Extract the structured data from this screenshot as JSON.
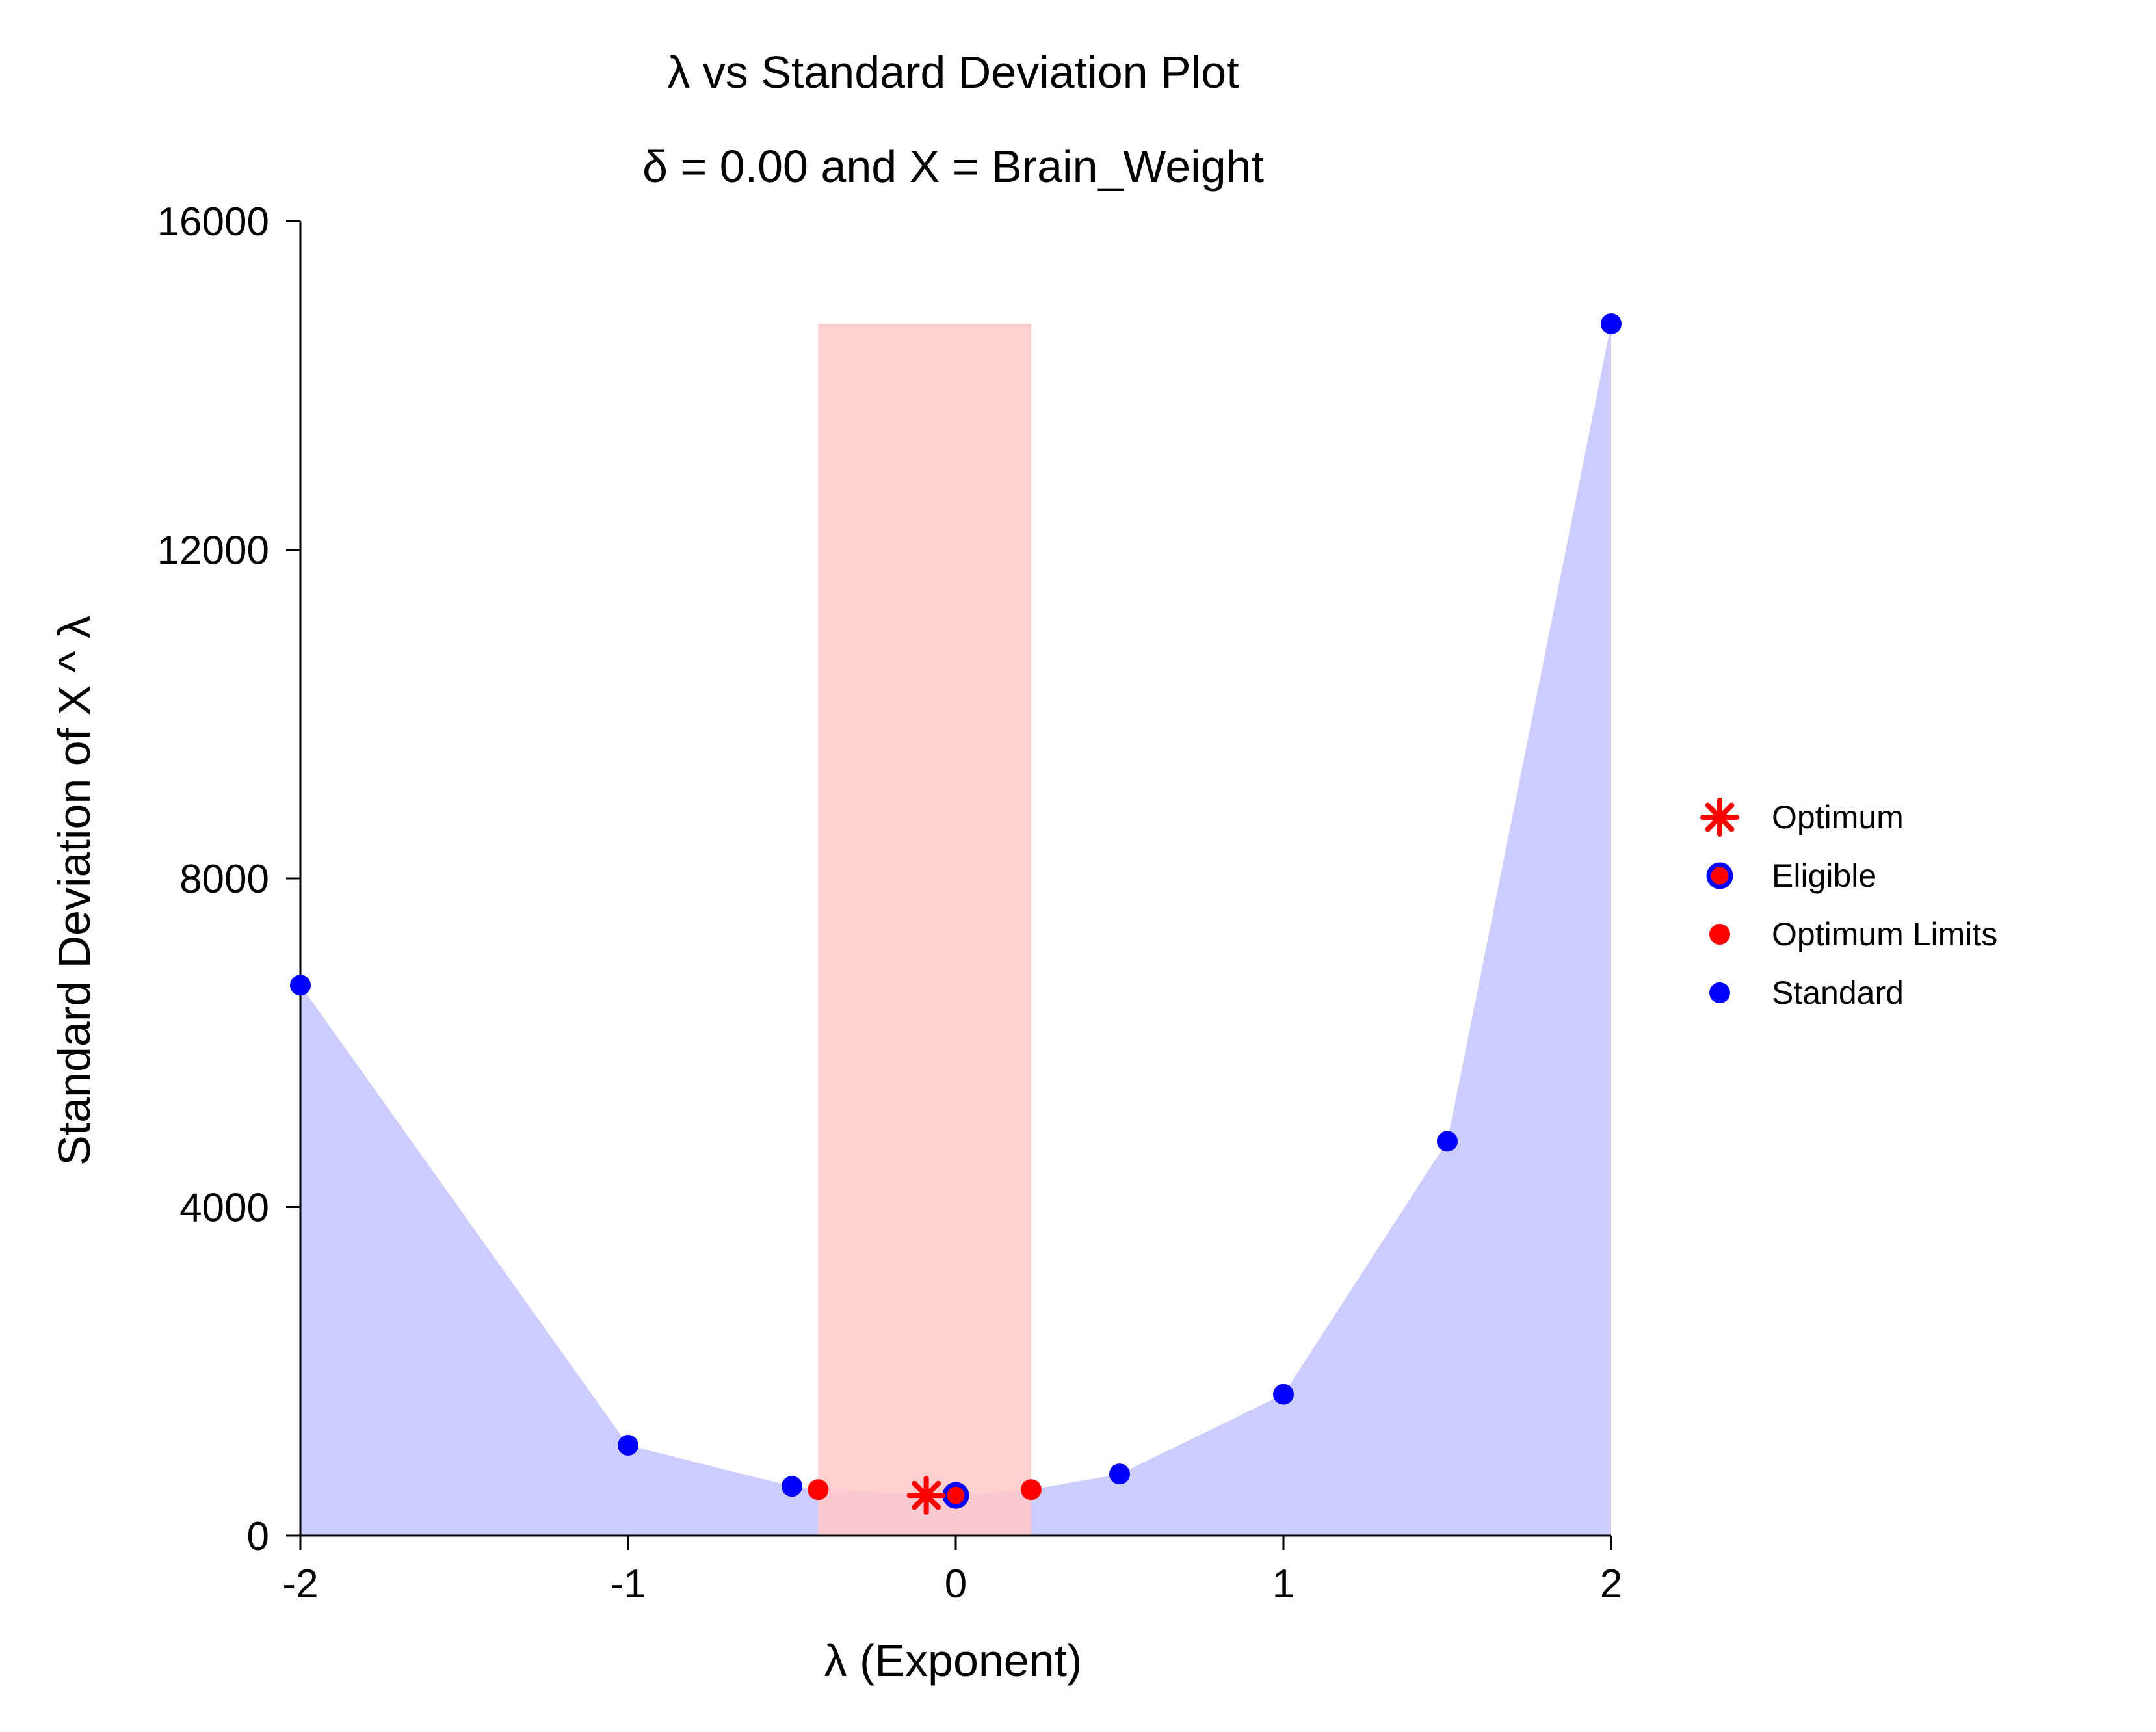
{
  "chart_data": {
    "type": "area",
    "title": "λ vs Standard Deviation Plot",
    "subtitle": "δ = 0.00 and X = Brain_Weight",
    "xlabel": "λ (Exponent)",
    "ylabel": "Standard Deviation of X ^ λ",
    "xlim": [
      -2,
      2
    ],
    "ylim": [
      0,
      16000
    ],
    "x_ticks": [
      "-2",
      "-1",
      "0",
      "1",
      "2"
    ],
    "y_ticks": [
      "0",
      "4000",
      "8000",
      "12000",
      "16000"
    ],
    "grid": false,
    "legend_position": "right",
    "colors": {
      "area_fill": "#ccccff",
      "band_fill": "#ffc8c8",
      "standard": "#0000ff",
      "optimum": "#ff0000"
    },
    "optimum_band": {
      "x_from": -0.42,
      "x_to": 0.23,
      "y_top": 14750
    },
    "curve": {
      "x": [
        -2,
        -1,
        -0.5,
        -0.42,
        0,
        0.23,
        0.5,
        1,
        1.5,
        2
      ],
      "y": [
        6700,
        1100,
        600,
        560,
        490,
        560,
        750,
        1720,
        4800,
        14750
      ]
    },
    "series": [
      {
        "name": "Standard",
        "marker": "dot",
        "color": "#0000ff",
        "x": [
          -2,
          -1,
          -0.5,
          0.5,
          1,
          1.5,
          2
        ],
        "y": [
          6700,
          1100,
          600,
          750,
          1720,
          4800,
          14750
        ]
      },
      {
        "name": "Eligible",
        "marker": "ring-dot",
        "color": "#0000ff",
        "x": [
          0
        ],
        "y": [
          490
        ]
      },
      {
        "name": "Optimum Limits",
        "marker": "dot",
        "color": "#ff0000",
        "x": [
          -0.42,
          0.23
        ],
        "y": [
          560,
          560
        ]
      },
      {
        "name": "Optimum",
        "marker": "star",
        "color": "#ff0000",
        "x": [
          -0.09
        ],
        "y": [
          490
        ]
      }
    ],
    "legend": [
      "Optimum",
      "Eligible",
      "Optimum Limits",
      "Standard"
    ]
  }
}
